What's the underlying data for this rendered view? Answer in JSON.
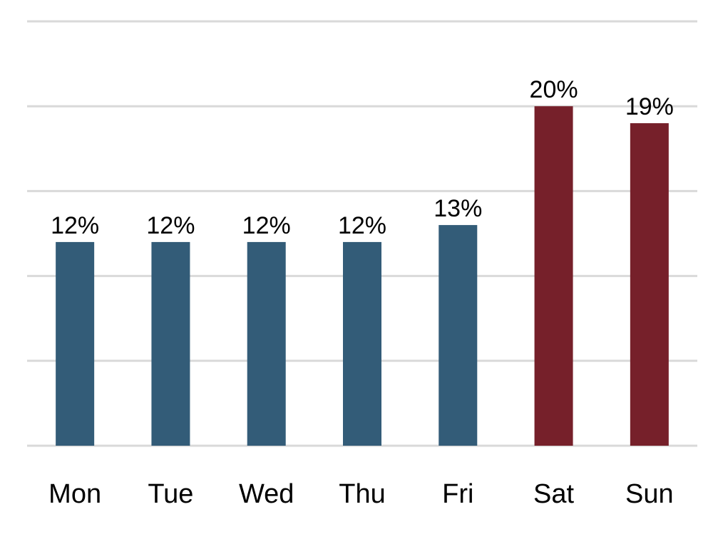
{
  "chart_data": {
    "type": "bar",
    "categories": [
      "Mon",
      "Tue",
      "Wed",
      "Thu",
      "Fri",
      "Sat",
      "Sun"
    ],
    "values": [
      12,
      12,
      12,
      12,
      13,
      20,
      19
    ],
    "data_labels": [
      "12%",
      "12%",
      "12%",
      "12%",
      "13%",
      "20%",
      "19%"
    ],
    "highlight": [
      false,
      false,
      false,
      false,
      false,
      true,
      true
    ],
    "unit": "%",
    "title": "",
    "xlabel": "",
    "ylabel": "",
    "ylim": [
      0,
      25
    ],
    "grid_step": 5,
    "grid": true,
    "legend": "none",
    "colors": {
      "weekday": "#335c78",
      "weekend": "#76202a",
      "grid": "#d9d9d9"
    }
  }
}
